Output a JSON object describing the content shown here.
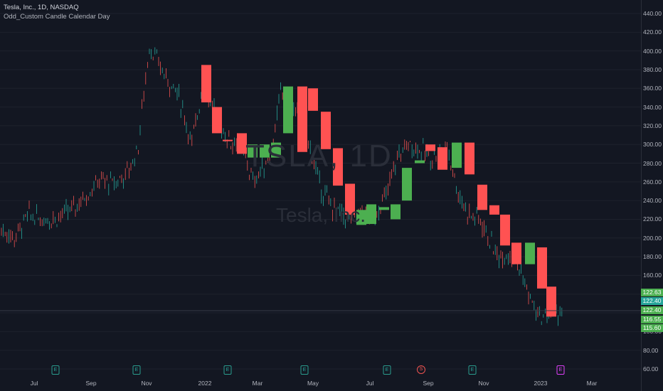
{
  "header": {
    "symbol_line": "Tesla, Inc., 1D, NASDAQ",
    "indicator": "Odd_Custom Candle Calendar Day"
  },
  "watermark": {
    "ticker": "TSLA, 1D",
    "name": "Tesla, Inc."
  },
  "colors": {
    "up": "#4caf50",
    "down": "#ef5350",
    "background": "#131722",
    "grid": "#1e222d"
  },
  "y_axis_labels": [
    "440.00",
    "420.00",
    "400.00",
    "380.00",
    "360.00",
    "340.00",
    "320.00",
    "300.00",
    "280.00",
    "260.00",
    "240.00",
    "220.00",
    "200.00",
    "180.00",
    "160.00",
    "140.00",
    "100.00",
    "80.00",
    "60.00"
  ],
  "x_axis_labels": [
    "Jul",
    "Sep",
    "Nov",
    "2022",
    "Mar",
    "May",
    "Jul",
    "Sep",
    "Nov",
    "2023",
    "Mar"
  ],
  "price_tags": [
    "122.63",
    "122.40",
    "122.40",
    "116.55",
    "115.60"
  ],
  "events": [
    "E",
    "E",
    "E",
    "E",
    "E",
    "E",
    "S",
    "E",
    "E"
  ],
  "chart_data": {
    "type": "candlestick",
    "title": "Tesla, Inc., 1D, NASDAQ",
    "ylim": [
      60,
      440
    ],
    "x_range": [
      "2021-06-01",
      "2023-04-01"
    ],
    "y_ticks": [
      60,
      80,
      100,
      120,
      140,
      160,
      180,
      200,
      220,
      240,
      260,
      280,
      300,
      320,
      340,
      360,
      380,
      400,
      420,
      440
    ],
    "overlay_candles": [
      {
        "date": "2021-11-09",
        "open": 341,
        "high": 375,
        "low": 330,
        "close": 385,
        "dir": "down",
        "o": 385,
        "c": 345
      },
      {
        "date": "2021-11-20",
        "o": 340,
        "c": 312,
        "dir": "down"
      },
      {
        "date": "2021-12-01",
        "o": 305,
        "c": 305,
        "dir": "down"
      },
      {
        "date": "2021-12-12",
        "o": 312,
        "c": 290,
        "dir": "down"
      },
      {
        "date": "2021-12-24",
        "o": 300,
        "c": 286,
        "dir": "up"
      },
      {
        "date": "2022-01-04",
        "o": 300,
        "c": 286,
        "dir": "up"
      },
      {
        "date": "2022-01-08",
        "o": 286,
        "c": 302,
        "dir": "up"
      },
      {
        "date": "2022-01-20",
        "o": 312,
        "c": 362,
        "dir": "up"
      },
      {
        "date": "2022-03-01",
        "o": 362,
        "c": 292,
        "dir": "down"
      },
      {
        "date": "2022-03-15",
        "o": 360,
        "c": 336,
        "dir": "down"
      },
      {
        "date": "2022-03-22",
        "o": 335,
        "c": 295,
        "dir": "down"
      },
      {
        "date": "2022-04-01",
        "o": 296,
        "c": 256,
        "dir": "down"
      },
      {
        "date": "2022-04-12",
        "o": 258,
        "c": 225,
        "dir": "down"
      },
      {
        "date": "2022-04-24",
        "o": 230,
        "c": 214,
        "dir": "up"
      },
      {
        "date": "2022-05-05",
        "o": 215,
        "c": 236,
        "dir": "up"
      },
      {
        "date": "2022-05-18",
        "o": 233,
        "c": 230,
        "dir": "up"
      },
      {
        "date": "2022-05-30",
        "o": 220,
        "c": 236,
        "dir": "up"
      },
      {
        "date": "2022-06-10",
        "o": 240,
        "c": 275,
        "dir": "up"
      },
      {
        "date": "2022-06-21",
        "o": 280,
        "c": 283,
        "dir": "up"
      },
      {
        "date": "2022-07-05",
        "o": 300,
        "c": 293,
        "dir": "down"
      },
      {
        "date": "2022-07-17",
        "o": 297,
        "c": 273,
        "dir": "down"
      },
      {
        "date": "2022-07-29",
        "o": 275,
        "c": 302,
        "dir": "up"
      },
      {
        "date": "2022-08-09",
        "o": 302,
        "c": 268,
        "dir": "down"
      },
      {
        "date": "2022-08-21",
        "o": 257,
        "c": 230,
        "dir": "down"
      },
      {
        "date": "2022-09-01",
        "o": 235,
        "c": 225,
        "dir": "down"
      },
      {
        "date": "2022-09-13",
        "o": 225,
        "c": 192,
        "dir": "down"
      },
      {
        "date": "2022-09-24",
        "o": 195,
        "c": 172,
        "dir": "down"
      },
      {
        "date": "2022-10-06",
        "o": 195,
        "c": 172,
        "dir": "up"
      },
      {
        "date": "2022-10-18",
        "o": 190,
        "c": 146,
        "dir": "down"
      },
      {
        "date": "2022-11-01",
        "o": 148,
        "c": 116,
        "dir": "down"
      },
      {
        "date": "2022-11-13",
        "o": 122,
        "c": 115,
        "dir": "up"
      },
      {
        "date": "2022-11-25",
        "o": 117,
        "c": 121,
        "dir": "up"
      }
    ]
  }
}
